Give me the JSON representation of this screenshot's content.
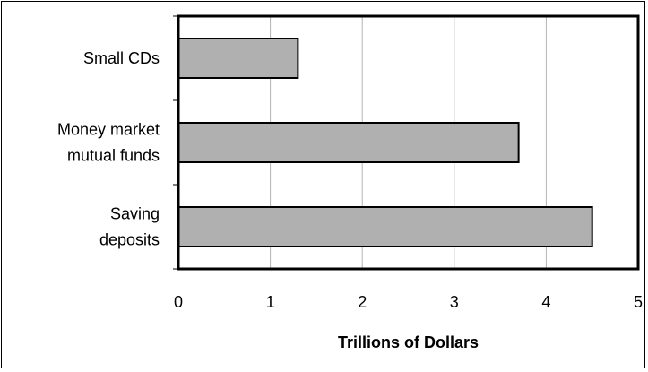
{
  "chart_data": {
    "type": "bar",
    "orientation": "horizontal",
    "categories": [
      [
        "Small CDs"
      ],
      [
        "Money market",
        "mutual funds"
      ],
      [
        "Saving",
        "deposits"
      ]
    ],
    "values": [
      1.3,
      3.7,
      4.5
    ],
    "xlabel": "Trillions of Dollars",
    "ylabel": "",
    "title": "",
    "xlim": [
      0,
      5
    ],
    "xticks": [
      "0",
      "1",
      "2",
      "3",
      "4",
      "5"
    ],
    "grid": "vertical",
    "bar_color": "#b0b0b0",
    "legend": "none"
  }
}
